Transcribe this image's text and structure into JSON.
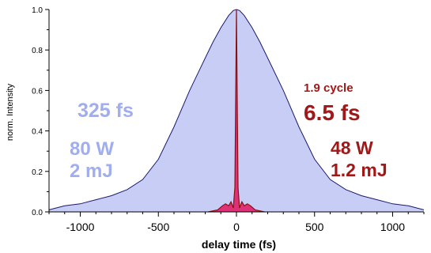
{
  "chart_data": {
    "type": "area",
    "xlabel": "delay time (fs)",
    "ylabel": "norm. Intensity",
    "xlim": [
      -1200,
      1200
    ],
    "ylim": [
      0,
      1.0
    ],
    "x_ticks": [
      -1000,
      -500,
      0,
      500,
      1000
    ],
    "y_ticks": [
      0.0,
      0.2,
      0.4,
      0.6,
      0.8,
      1.0
    ],
    "x_tick_labels": [
      "-1000",
      "-500",
      "0",
      "500",
      "1000"
    ],
    "y_tick_labels": [
      "0.0",
      "0.2",
      "0.4",
      "0.6",
      "0.8",
      "1.0"
    ],
    "grid": false,
    "series": [
      {
        "color": "#c8cdf5",
        "line_color": "#1a1a6e",
        "x": [
          -1200,
          -1100,
          -1000,
          -900,
          -800,
          -700,
          -600,
          -500,
          -400,
          -300,
          -200,
          -150,
          -100,
          -50,
          -20,
          0,
          20,
          50,
          100,
          150,
          200,
          300,
          400,
          500,
          600,
          700,
          800,
          900,
          1000,
          1100,
          1200
        ],
        "values": [
          0.01,
          0.03,
          0.04,
          0.06,
          0.08,
          0.11,
          0.16,
          0.26,
          0.42,
          0.6,
          0.76,
          0.84,
          0.91,
          0.97,
          0.995,
          1.0,
          0.995,
          0.97,
          0.91,
          0.84,
          0.76,
          0.6,
          0.42,
          0.26,
          0.16,
          0.11,
          0.08,
          0.06,
          0.04,
          0.03,
          0.01
        ]
      },
      {
        "color": "#e0206a",
        "line_color": "#8b1010",
        "x": [
          -180,
          -120,
          -90,
          -70,
          -50,
          -35,
          -20,
          -10,
          -5,
          0,
          5,
          10,
          20,
          35,
          50,
          70,
          90,
          120,
          180
        ],
        "values": [
          0.0,
          0.01,
          0.03,
          0.04,
          0.03,
          0.05,
          0.02,
          0.12,
          0.55,
          1.0,
          0.55,
          0.12,
          0.02,
          0.05,
          0.03,
          0.04,
          0.03,
          0.01,
          0.0
        ]
      }
    ],
    "annotations": {
      "left_duration": "325 fs",
      "left_power": "80 W",
      "left_energy": "2 mJ",
      "right_cycles": "1.9 cycle",
      "right_duration": "6.5 fs",
      "right_power": "48 W",
      "right_energy": "1.2 mJ"
    },
    "annotation_colors": {
      "left": "#a0aef0",
      "right": "#a01818"
    }
  }
}
